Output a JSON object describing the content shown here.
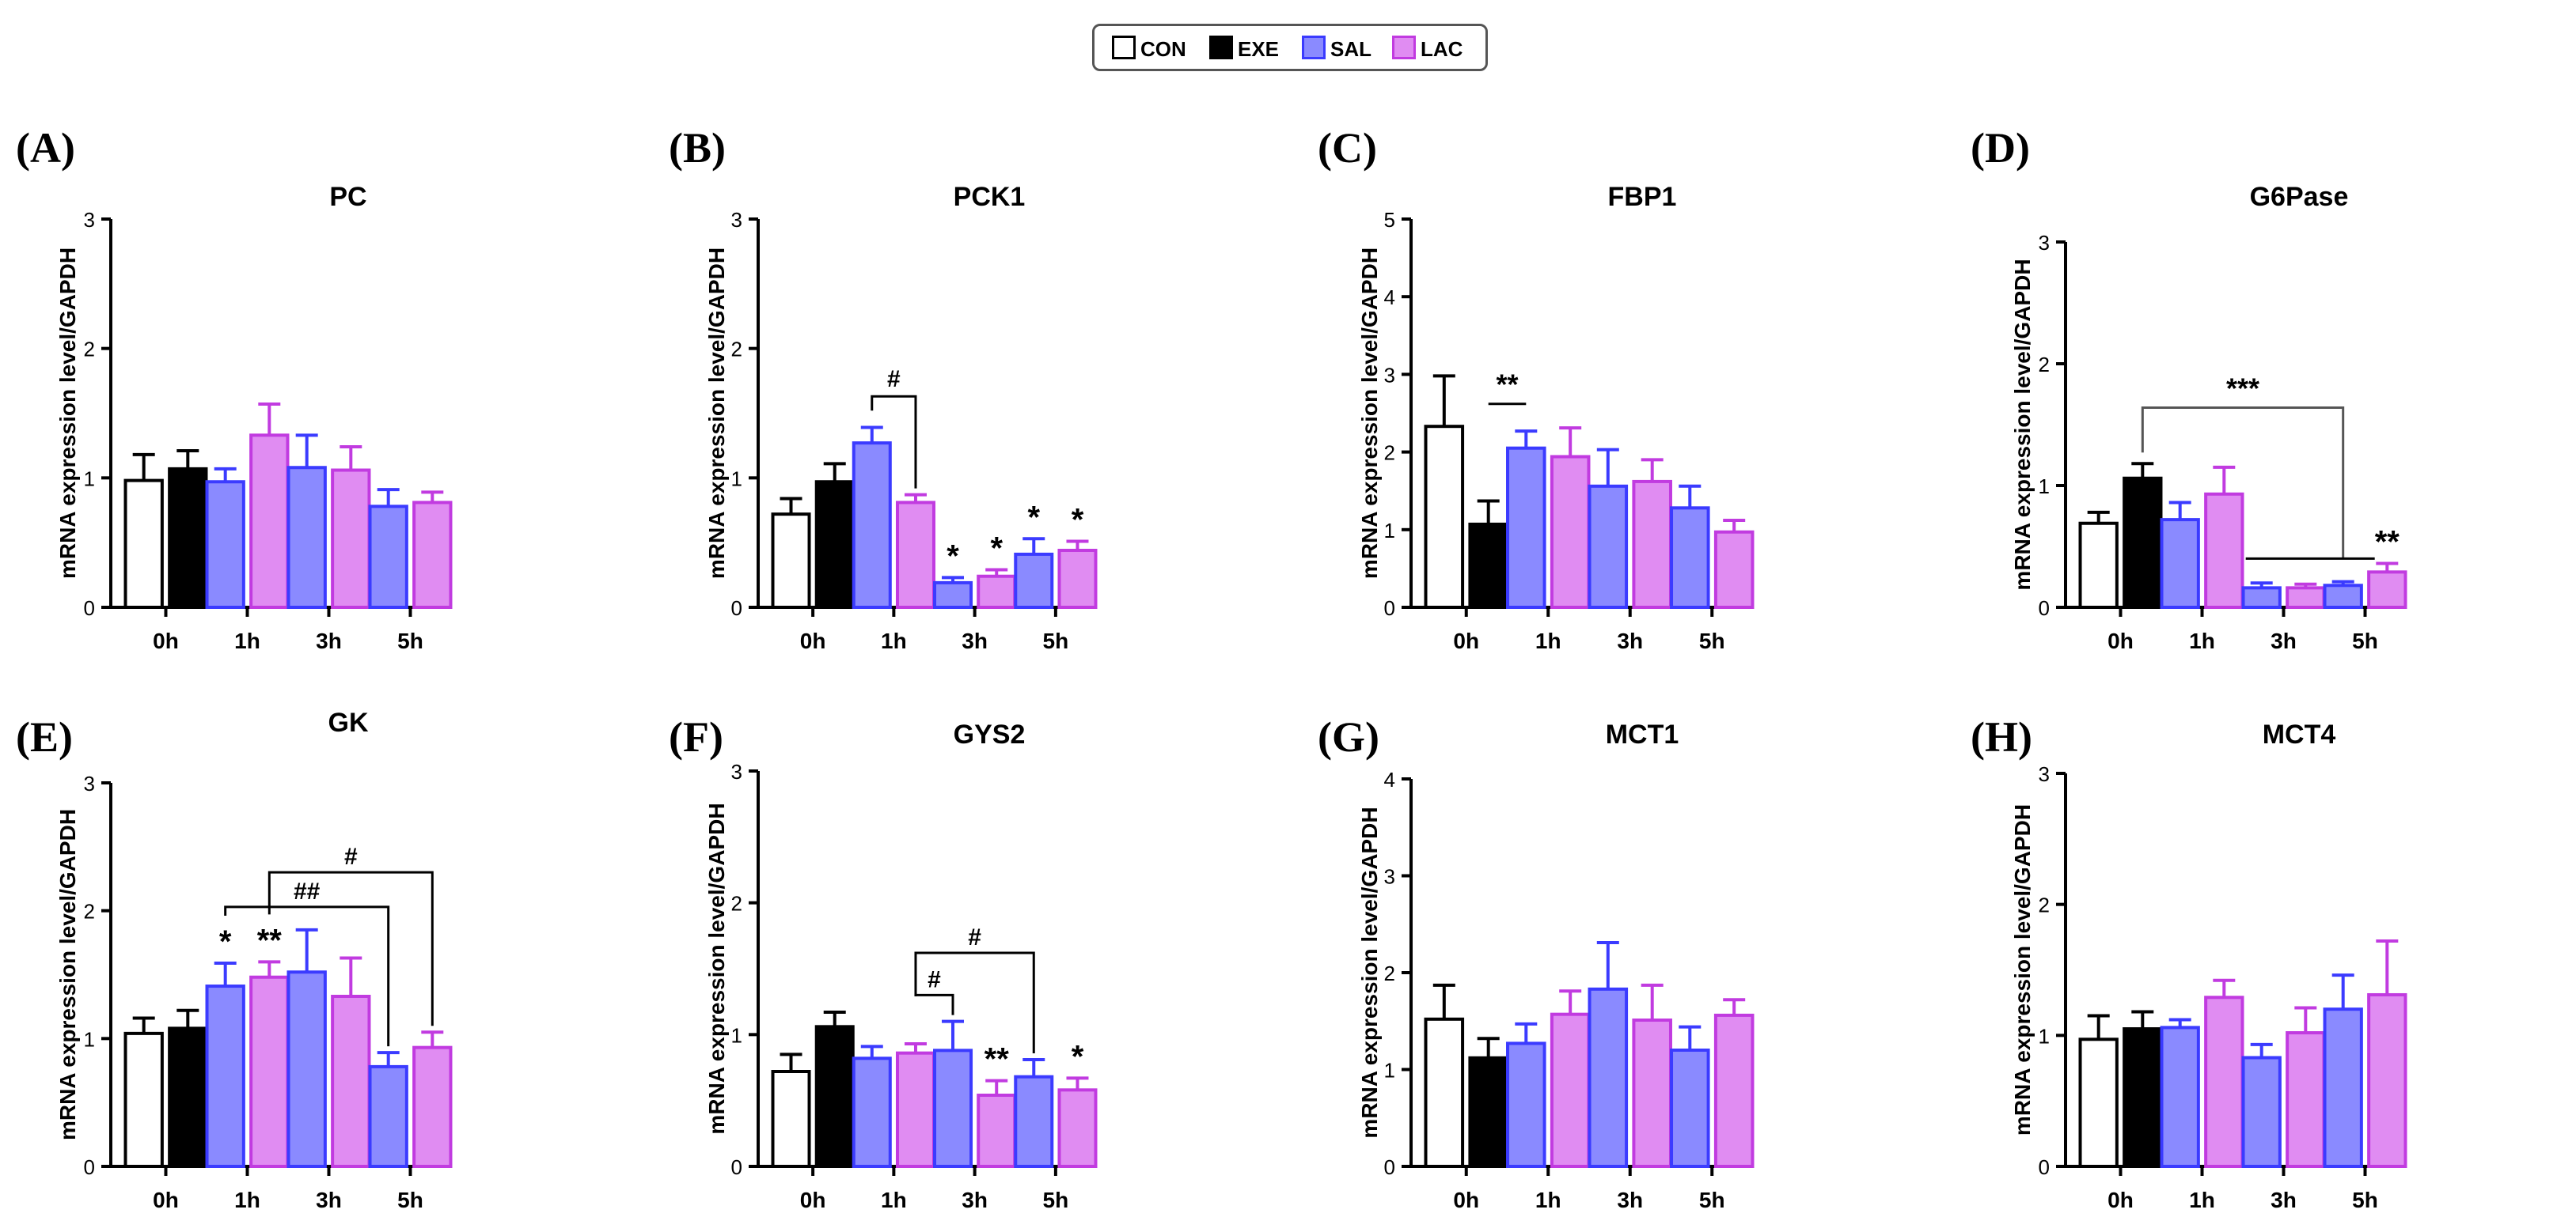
{
  "legend": [
    {
      "name": "CON",
      "fill": "#ffffff",
      "stroke": "#000000"
    },
    {
      "name": "EXE",
      "fill": "#000000",
      "stroke": "#000000"
    },
    {
      "name": "SAL",
      "fill": "#8a8aff",
      "stroke": "#3b3bff"
    },
    {
      "name": "LAC",
      "fill": "#e08cf2",
      "stroke": "#c13be0"
    }
  ],
  "colors": {
    "CON": "#ffffff",
    "EXE": "#000000",
    "SAL": "#8a8aff",
    "LAC": "#e08cf2",
    "SAL_err": "#3b3bff",
    "LAC_err": "#c13be0"
  },
  "chart_data": [
    {
      "panel": "(A)",
      "title": "PC",
      "type": "bar",
      "ylabel": "mRNA expression level/GAPDH",
      "categories": [
        "0h",
        "1h",
        "3h",
        "5h"
      ],
      "ylim": [
        0,
        3
      ],
      "yticks": [
        0,
        1,
        2,
        3
      ],
      "bars": [
        {
          "cat": 0,
          "group": "CON",
          "value": 0.98,
          "err": 0.2
        },
        {
          "cat": 0,
          "group": "EXE",
          "value": 1.07,
          "err": 0.14
        },
        {
          "cat": 1,
          "group": "SAL",
          "value": 0.97,
          "err": 0.1
        },
        {
          "cat": 1,
          "group": "LAC",
          "value": 1.33,
          "err": 0.24
        },
        {
          "cat": 2,
          "group": "SAL",
          "value": 1.08,
          "err": 0.25
        },
        {
          "cat": 2,
          "group": "LAC",
          "value": 1.06,
          "err": 0.18
        },
        {
          "cat": 3,
          "group": "SAL",
          "value": 0.78,
          "err": 0.13
        },
        {
          "cat": 3,
          "group": "LAC",
          "value": 0.81,
          "err": 0.08
        }
      ],
      "brackets": [],
      "star_marks": []
    },
    {
      "panel": "(B)",
      "title": "PCK1",
      "type": "bar",
      "ylabel": "mRNA expression level/GAPDH",
      "categories": [
        "0h",
        "1h",
        "3h",
        "5h"
      ],
      "ylim": [
        0,
        3
      ],
      "yticks": [
        0,
        1,
        2,
        3
      ],
      "bars": [
        {
          "cat": 0,
          "group": "CON",
          "value": 0.72,
          "err": 0.12
        },
        {
          "cat": 0,
          "group": "EXE",
          "value": 0.97,
          "err": 0.14
        },
        {
          "cat": 1,
          "group": "SAL",
          "value": 1.27,
          "err": 0.12
        },
        {
          "cat": 1,
          "group": "LAC",
          "value": 0.81,
          "err": 0.06
        },
        {
          "cat": 2,
          "group": "SAL",
          "value": 0.19,
          "err": 0.04
        },
        {
          "cat": 2,
          "group": "LAC",
          "value": 0.24,
          "err": 0.05
        },
        {
          "cat": 3,
          "group": "SAL",
          "value": 0.41,
          "err": 0.12
        },
        {
          "cat": 3,
          "group": "LAC",
          "value": 0.44,
          "err": 0.07
        }
      ],
      "brackets": [
        {
          "from_bar": 2,
          "to_bar": 3,
          "level": 1.63,
          "style": "right-drop",
          "label": "#"
        }
      ],
      "star_marks": [
        {
          "bar": 4,
          "label": "*"
        },
        {
          "bar": 5,
          "label": "*"
        },
        {
          "bar": 6,
          "label": "*"
        },
        {
          "bar": 7,
          "label": "*"
        }
      ]
    },
    {
      "panel": "(C)",
      "title": "FBP1",
      "type": "bar",
      "ylabel": "mRNA expression level/GAPDH",
      "categories": [
        "0h",
        "1h",
        "3h",
        "5h"
      ],
      "ylim": [
        0,
        5
      ],
      "yticks": [
        0,
        1,
        2,
        3,
        4,
        5
      ],
      "bars": [
        {
          "cat": 0,
          "group": "CON",
          "value": 2.33,
          "err": 0.65
        },
        {
          "cat": 0,
          "group": "EXE",
          "value": 1.07,
          "err": 0.3
        },
        {
          "cat": 1,
          "group": "SAL",
          "value": 2.05,
          "err": 0.22
        },
        {
          "cat": 1,
          "group": "LAC",
          "value": 1.94,
          "err": 0.37
        },
        {
          "cat": 2,
          "group": "SAL",
          "value": 1.56,
          "err": 0.47
        },
        {
          "cat": 2,
          "group": "LAC",
          "value": 1.62,
          "err": 0.28
        },
        {
          "cat": 3,
          "group": "SAL",
          "value": 1.28,
          "err": 0.28
        },
        {
          "cat": 3,
          "group": "LAC",
          "value": 0.97,
          "err": 0.15
        }
      ],
      "brackets": [
        {
          "from_bar": 1,
          "to_bar": 2,
          "level": 2.62,
          "style": "line",
          "label": "**"
        }
      ],
      "star_marks": []
    },
    {
      "panel": "(D)",
      "title": "G6Pase",
      "type": "bar",
      "ylabel": "mRNA expression level/GAPDH",
      "categories": [
        "0h",
        "1h",
        "3h",
        "5h"
      ],
      "ylim": [
        0,
        3
      ],
      "yticks": [
        0,
        1,
        2,
        3
      ],
      "bars": [
        {
          "cat": 0,
          "group": "CON",
          "value": 0.69,
          "err": 0.09
        },
        {
          "cat": 0,
          "group": "EXE",
          "value": 1.06,
          "err": 0.12
        },
        {
          "cat": 1,
          "group": "SAL",
          "value": 0.72,
          "err": 0.14
        },
        {
          "cat": 1,
          "group": "LAC",
          "value": 0.93,
          "err": 0.22
        },
        {
          "cat": 2,
          "group": "SAL",
          "value": 0.16,
          "err": 0.04
        },
        {
          "cat": 2,
          "group": "LAC",
          "value": 0.16,
          "err": 0.03
        },
        {
          "cat": 3,
          "group": "SAL",
          "value": 0.18,
          "err": 0.03
        },
        {
          "cat": 3,
          "group": "LAC",
          "value": 0.29,
          "err": 0.07
        }
      ],
      "brackets": [
        {
          "from_bar": 1,
          "to_bar": 6,
          "level": 1.64,
          "style": "fork",
          "fork_left": 4,
          "fork_right": 6,
          "fork_level": 0.4,
          "label": "***"
        }
      ],
      "star_marks": [
        {
          "bar": 7,
          "label": "**"
        }
      ]
    },
    {
      "panel": "(E)",
      "title": "GK",
      "type": "bar",
      "ylabel": "mRNA expression level/GAPDH",
      "categories": [
        "0h",
        "1h",
        "3h",
        "5h"
      ],
      "ylim": [
        0,
        3
      ],
      "yticks": [
        0,
        1,
        2,
        3
      ],
      "bars": [
        {
          "cat": 0,
          "group": "CON",
          "value": 1.04,
          "err": 0.12
        },
        {
          "cat": 0,
          "group": "EXE",
          "value": 1.08,
          "err": 0.14
        },
        {
          "cat": 1,
          "group": "SAL",
          "value": 1.41,
          "err": 0.18
        },
        {
          "cat": 1,
          "group": "LAC",
          "value": 1.48,
          "err": 0.12
        },
        {
          "cat": 2,
          "group": "SAL",
          "value": 1.52,
          "err": 0.33
        },
        {
          "cat": 2,
          "group": "LAC",
          "value": 1.33,
          "err": 0.3
        },
        {
          "cat": 3,
          "group": "SAL",
          "value": 0.78,
          "err": 0.11
        },
        {
          "cat": 3,
          "group": "LAC",
          "value": 0.93,
          "err": 0.12
        }
      ],
      "brackets": [
        {
          "from_bar": 2,
          "to_bar": 6,
          "level": 2.03,
          "style": "both-drop",
          "label": "##"
        },
        {
          "from_bar": 3,
          "to_bar": 7,
          "level": 2.3,
          "style": "both-drop",
          "label": "#"
        }
      ],
      "star_marks": [
        {
          "bar": 2,
          "label": "*"
        },
        {
          "bar": 3,
          "label": "**"
        }
      ]
    },
    {
      "panel": "(F)",
      "title": "GYS2",
      "type": "bar",
      "ylabel": "mRNA expression level/GAPDH",
      "categories": [
        "0h",
        "1h",
        "3h",
        "5h"
      ],
      "ylim": [
        0,
        3
      ],
      "yticks": [
        0,
        1,
        2,
        3
      ],
      "bars": [
        {
          "cat": 0,
          "group": "CON",
          "value": 0.72,
          "err": 0.13
        },
        {
          "cat": 0,
          "group": "EXE",
          "value": 1.06,
          "err": 0.11
        },
        {
          "cat": 1,
          "group": "SAL",
          "value": 0.82,
          "err": 0.09
        },
        {
          "cat": 1,
          "group": "LAC",
          "value": 0.86,
          "err": 0.07
        },
        {
          "cat": 2,
          "group": "SAL",
          "value": 0.88,
          "err": 0.22
        },
        {
          "cat": 2,
          "group": "LAC",
          "value": 0.54,
          "err": 0.11
        },
        {
          "cat": 3,
          "group": "SAL",
          "value": 0.68,
          "err": 0.13
        },
        {
          "cat": 3,
          "group": "LAC",
          "value": 0.58,
          "err": 0.09
        }
      ],
      "brackets": [
        {
          "from_bar": 3,
          "to_bar": 4,
          "level": 1.3,
          "style": "both-drop",
          "label": "#"
        },
        {
          "from_bar": 3,
          "to_bar": 6,
          "level": 1.62,
          "style": "both-drop",
          "label": "#"
        }
      ],
      "star_marks": [
        {
          "bar": 5,
          "label": "**"
        },
        {
          "bar": 7,
          "label": "*"
        }
      ]
    },
    {
      "panel": "(G)",
      "title": "MCT1",
      "type": "bar",
      "ylabel": "mRNA expression level/GAPDH",
      "categories": [
        "0h",
        "1h",
        "3h",
        "5h"
      ],
      "ylim": [
        0,
        4
      ],
      "yticks": [
        0,
        1,
        2,
        3,
        4
      ],
      "bars": [
        {
          "cat": 0,
          "group": "CON",
          "value": 1.52,
          "err": 0.35
        },
        {
          "cat": 0,
          "group": "EXE",
          "value": 1.12,
          "err": 0.2
        },
        {
          "cat": 1,
          "group": "SAL",
          "value": 1.27,
          "err": 0.2
        },
        {
          "cat": 1,
          "group": "LAC",
          "value": 1.57,
          "err": 0.24
        },
        {
          "cat": 2,
          "group": "SAL",
          "value": 1.83,
          "err": 0.48
        },
        {
          "cat": 2,
          "group": "LAC",
          "value": 1.51,
          "err": 0.36
        },
        {
          "cat": 3,
          "group": "SAL",
          "value": 1.2,
          "err": 0.24
        },
        {
          "cat": 3,
          "group": "LAC",
          "value": 1.56,
          "err": 0.16
        }
      ],
      "brackets": [],
      "star_marks": []
    },
    {
      "panel": "(H)",
      "title": "MCT4",
      "type": "bar",
      "ylabel": "mRNA expression level/GAPDH",
      "categories": [
        "0h",
        "1h",
        "3h",
        "5h"
      ],
      "ylim": [
        0,
        3
      ],
      "yticks": [
        0,
        1,
        2,
        3
      ],
      "bars": [
        {
          "cat": 0,
          "group": "CON",
          "value": 0.97,
          "err": 0.18
        },
        {
          "cat": 0,
          "group": "EXE",
          "value": 1.05,
          "err": 0.13
        },
        {
          "cat": 1,
          "group": "SAL",
          "value": 1.06,
          "err": 0.06
        },
        {
          "cat": 1,
          "group": "LAC",
          "value": 1.29,
          "err": 0.13
        },
        {
          "cat": 2,
          "group": "SAL",
          "value": 0.83,
          "err": 0.1
        },
        {
          "cat": 2,
          "group": "LAC",
          "value": 1.02,
          "err": 0.19
        },
        {
          "cat": 3,
          "group": "SAL",
          "value": 1.2,
          "err": 0.26
        },
        {
          "cat": 3,
          "group": "LAC",
          "value": 1.31,
          "err": 0.41
        }
      ],
      "brackets": [],
      "star_marks": []
    }
  ]
}
